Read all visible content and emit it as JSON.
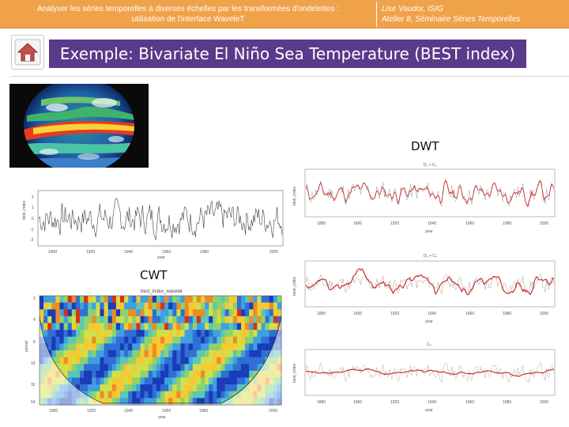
{
  "header": {
    "left_line1": "Analyser les séries temporelles à diverses échelles par les transformées d'ondelettes :",
    "left_line2": "utilisation de l'interface WaveleT",
    "right_line1": "Lise Vaudor, ISIG",
    "right_line2": "Atelier 8, Séminaire Séries Temporelles"
  },
  "title": "Exemple: Bivariate El Niño Sea Temperature (BEST index)",
  "labels": {
    "dwt": "DWT",
    "cwt": "CWT"
  },
  "timeseries_panel": {
    "ylabel": "best_index",
    "xlabel": "year",
    "y_ticks": [
      "2",
      "1",
      "0",
      "-1",
      "-2"
    ],
    "x_ticks": [
      "1900",
      "1920",
      "1940",
      "1960",
      "1980",
      "2000"
    ]
  },
  "cwt_panel": {
    "title": "best_index_wavelet",
    "ylabel": "period",
    "xlabel": "year",
    "y_ticks": [
      "2",
      "4",
      "8",
      "16",
      "32",
      "64"
    ],
    "x_ticks": [
      "1900",
      "1920",
      "1940",
      "1960",
      "1980",
      "2000"
    ]
  },
  "dwt_panels": [
    {
      "title": "D₁ + C₂",
      "ylabel": "best_index",
      "xlabel": "year",
      "x_ticks": [
        "1880",
        "1900",
        "1920",
        "1940",
        "1960",
        "1980",
        "2000"
      ]
    },
    {
      "title": "D₃ + C₄",
      "ylabel": "best_index",
      "xlabel": "year",
      "x_ticks": [
        "1880",
        "1900",
        "1920",
        "1940",
        "1960",
        "1980",
        "2000"
      ]
    },
    {
      "title": "C₆",
      "ylabel": "best_index",
      "xlabel": "year",
      "x_ticks": [
        "1880",
        "1900",
        "1920",
        "1940",
        "1960",
        "1980",
        "2000"
      ]
    }
  ],
  "colors": {
    "header": "#f0a24a",
    "title_bg": "#5a3a8a",
    "dwt_line": "#cc1f1f",
    "raw_line": "#333333"
  }
}
